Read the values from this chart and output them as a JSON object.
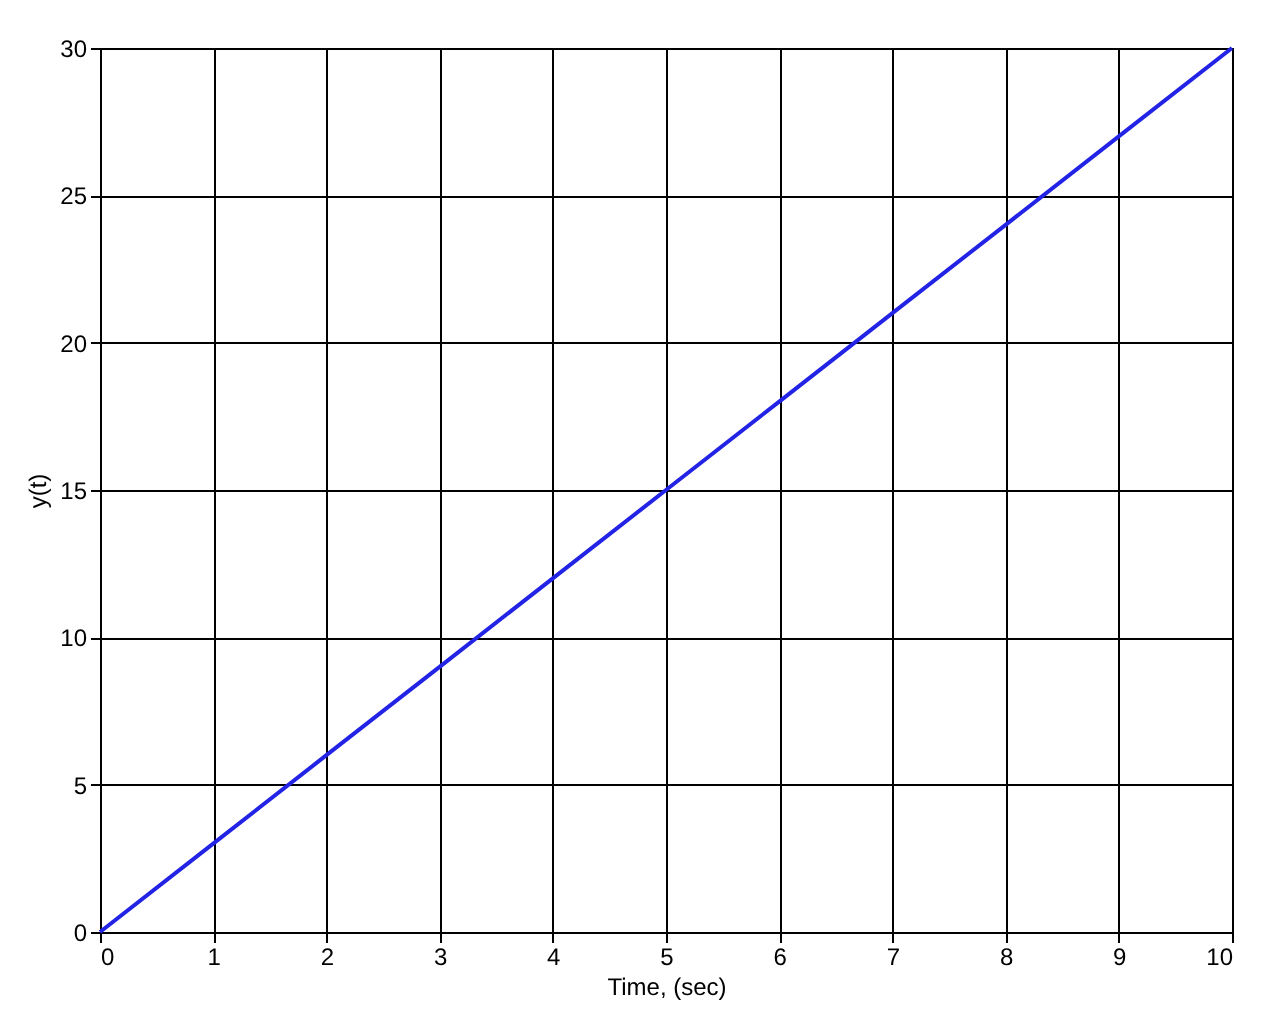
{
  "chart_data": {
    "type": "line",
    "xlabel": "Time, (sec)",
    "ylabel": "y(t)",
    "x": [
      0,
      1,
      2,
      3,
      4,
      5,
      6,
      7,
      8,
      9,
      10
    ],
    "series": [
      {
        "color": "#2323e6",
        "values": [
          0,
          3,
          6,
          9,
          12,
          15,
          18,
          21,
          24,
          27,
          30
        ]
      }
    ],
    "xlim": [
      0,
      10
    ],
    "xticks": [
      0,
      1,
      2,
      3,
      4,
      5,
      6,
      7,
      8,
      9,
      10
    ],
    "ylim": [
      0,
      30
    ],
    "yticks": [
      0,
      5,
      10,
      15,
      20,
      25,
      30
    ],
    "grid": true,
    "marker": "none",
    "line_style": "solid"
  }
}
